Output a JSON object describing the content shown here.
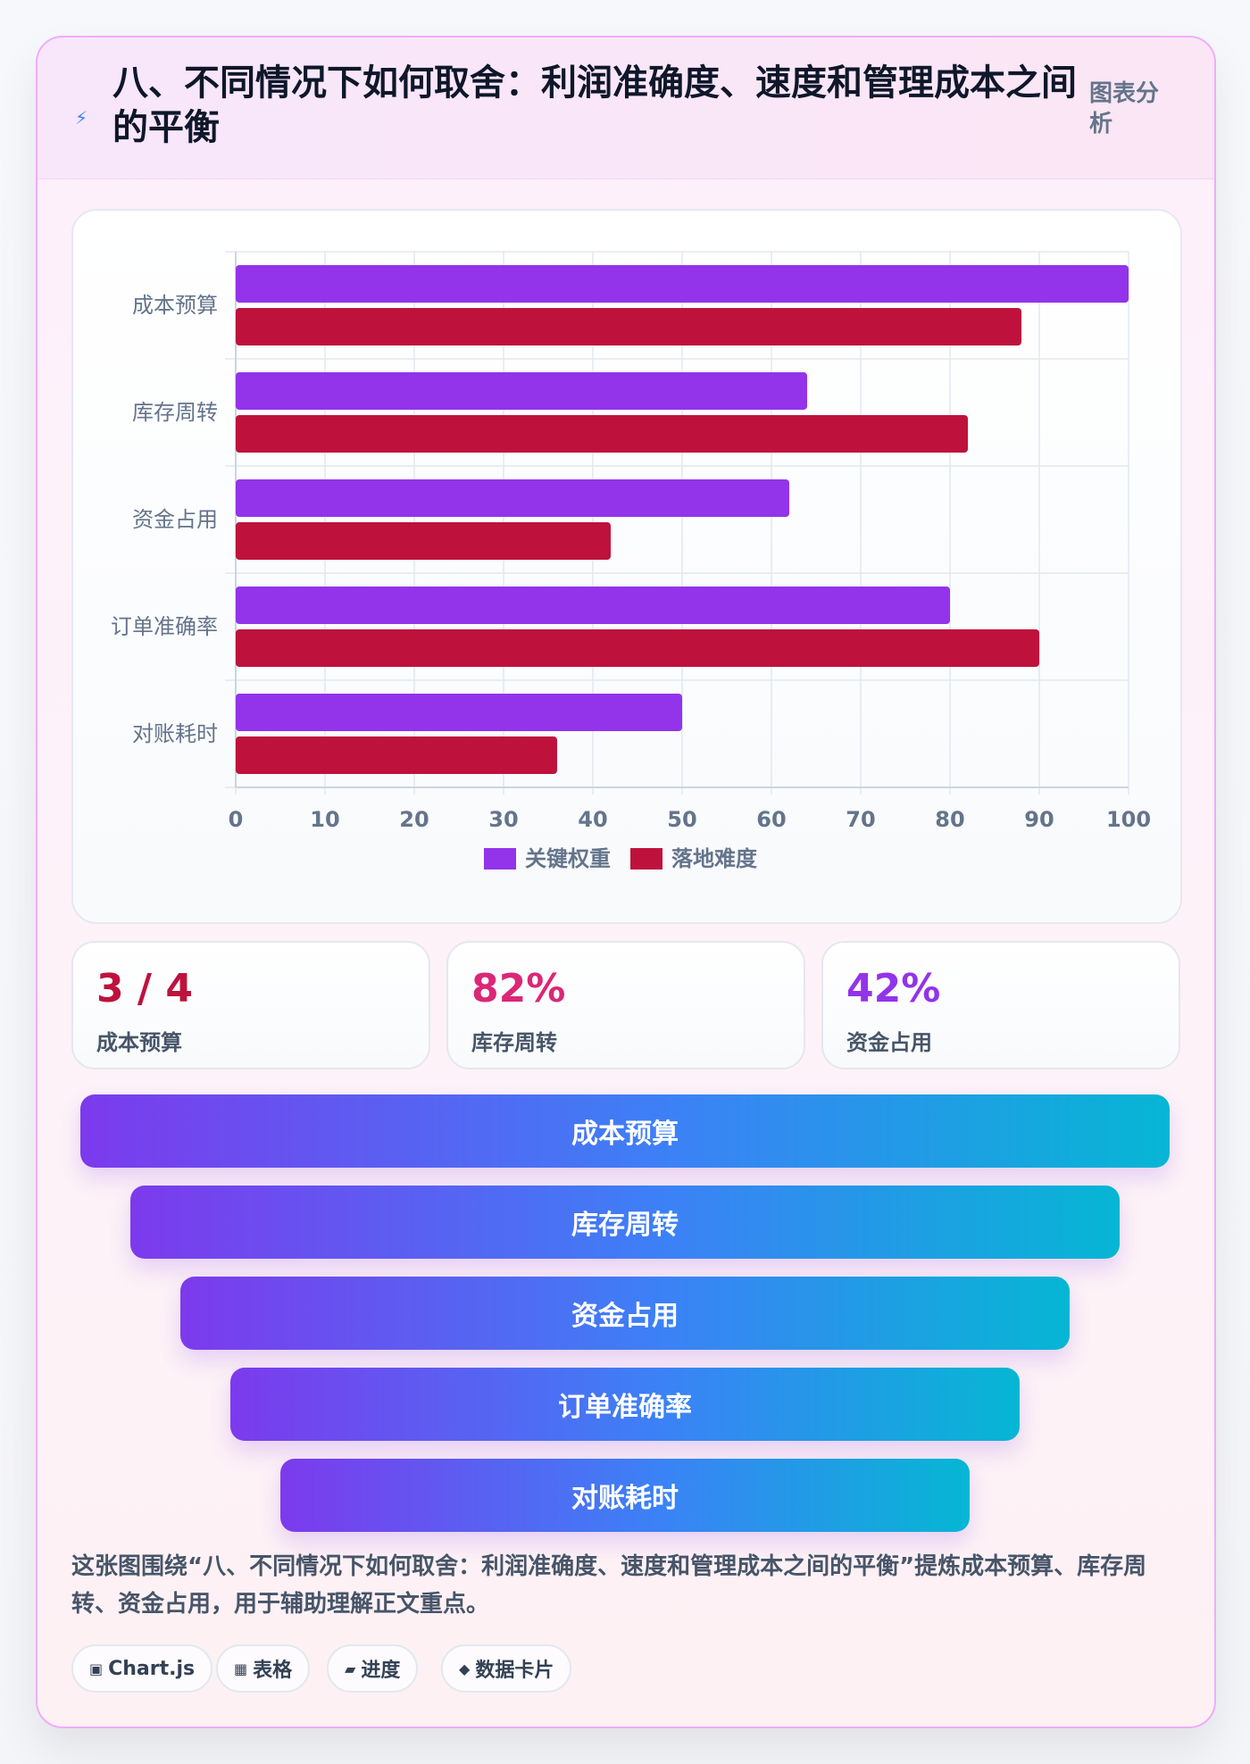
{
  "header": {
    "icon": "lightning-icon",
    "title": "八、不同情况下如何取舍：利润准确度、速度和管理成本之间的平衡",
    "tag": "图表分析"
  },
  "chart_data": {
    "type": "bar",
    "orientation": "horizontal",
    "categories": [
      "成本预算",
      "库存周转",
      "资金占用",
      "订单准确率",
      "对账耗时"
    ],
    "series": [
      {
        "name": "关键权重",
        "values": [
          100,
          64,
          62,
          80,
          50
        ],
        "color": "#9333ea"
      },
      {
        "name": "落地难度",
        "values": [
          88,
          82,
          42,
          90,
          36
        ],
        "color": "#be123c"
      }
    ],
    "xlim": [
      0,
      100
    ],
    "xticks": [
      0,
      10,
      20,
      30,
      40,
      50,
      60,
      70,
      80,
      90,
      100
    ],
    "grid": true,
    "legend": "bottom"
  },
  "stats": [
    {
      "value": "3 / 4",
      "label": "成本预算",
      "color": "#be123c"
    },
    {
      "value": "82%",
      "label": "库存周转",
      "color": "#db2777"
    },
    {
      "value": "42%",
      "label": "资金占用",
      "color": "#9333ea"
    }
  ],
  "funnel": [
    "成本预算",
    "库存周转",
    "资金占用",
    "订单准确率",
    "对账耗时"
  ],
  "summary": "这张图围绕“八、不同情况下如何取舍：利润准确度、速度和管理成本之间的平衡”提炼成本预算、库存周转、资金占用，用于辅助理解正文重点。",
  "chips": [
    {
      "icon": "▣",
      "label": "Chart.js"
    },
    {
      "icon": "▦",
      "label": "表格"
    },
    {
      "icon": "▰",
      "label": "进度"
    },
    {
      "icon": "◆",
      "label": "数据卡片"
    }
  ]
}
